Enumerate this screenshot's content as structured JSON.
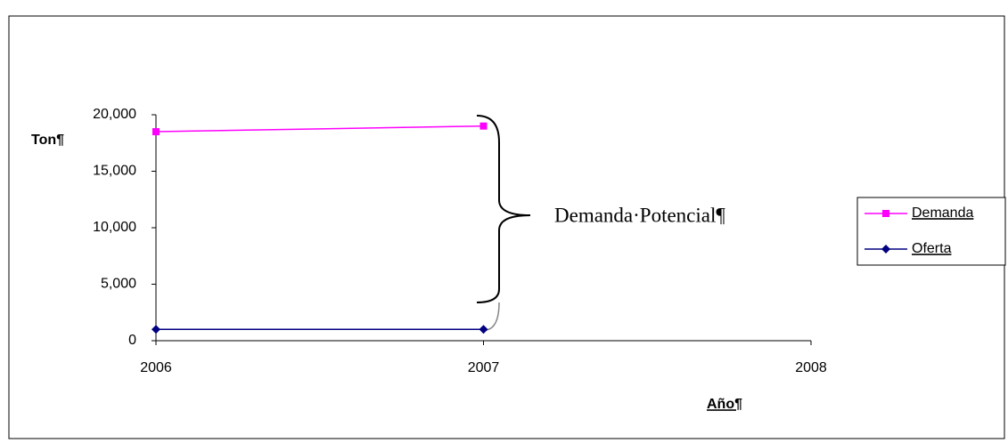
{
  "chart_data": {
    "type": "line",
    "y_label": "Ton¶",
    "x_label": "Año¶",
    "annotation": "Demanda·Potencial¶",
    "x": [
      2006,
      2007
    ],
    "series": [
      {
        "name": "Demanda",
        "color": "#ff00ff",
        "marker": "square",
        "values": [
          18500,
          19000
        ]
      },
      {
        "name": "Oferta",
        "color": "#000080",
        "marker": "diamond",
        "values": [
          1000,
          1000
        ]
      }
    ],
    "xlim": [
      2006,
      2008
    ],
    "xticks": [
      2006,
      2007,
      2008
    ],
    "ylim": [
      0,
      20000
    ],
    "yticks": [
      0,
      {
        "value": 5000,
        "label": "5,000"
      },
      {
        "value": 10000,
        "label": "10,000"
      },
      {
        "value": 15000,
        "label": "15,000"
      },
      {
        "value": 20000,
        "label": "20,000"
      }
    ],
    "legend": "right"
  }
}
